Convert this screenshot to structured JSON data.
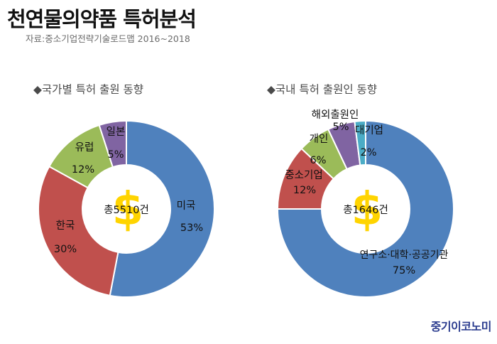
{
  "header": {
    "title": "천연물의약품 특허분석",
    "source": "자료:중소기업전략기술로드맵 2016~2018"
  },
  "logo_text": "중기이코노미",
  "colors": {
    "blue": "#4f81bd",
    "red": "#c0504d",
    "green": "#9bbb59",
    "purple": "#8064a2",
    "teal": "#4bacc6",
    "dollar": "#ffd400"
  },
  "chart_data": [
    {
      "type": "pie",
      "title": "◆국가별 특허 출원 동향",
      "center_label": "총5510건",
      "center_icon": "dollar-sign-icon",
      "slices": [
        {
          "label": "미국",
          "value": 53,
          "value_label": "53%",
          "color": "#4f81bd"
        },
        {
          "label": "한국",
          "value": 30,
          "value_label": "30%",
          "color": "#c0504d"
        },
        {
          "label": "유럽",
          "value": 12,
          "value_label": "12%",
          "color": "#9bbb59"
        },
        {
          "label": "일본",
          "value": 5,
          "value_label": "5%",
          "color": "#8064a2"
        }
      ]
    },
    {
      "type": "pie",
      "title": "◆국내 특허 출원인 동향",
      "center_label": "총1646건",
      "center_icon": "dollar-sign-icon",
      "slices": [
        {
          "label": "연구소·대학·공공기관",
          "value": 75,
          "value_label": "75%",
          "color": "#4f81bd"
        },
        {
          "label": "중소기업",
          "value": 12,
          "value_label": "12%",
          "color": "#c0504d"
        },
        {
          "label": "개인",
          "value": 6,
          "value_label": "6%",
          "color": "#9bbb59"
        },
        {
          "label": "해외출원인",
          "value": 5,
          "value_label": "5%",
          "color": "#8064a2"
        },
        {
          "label": "대기업",
          "value": 2,
          "value_label": "2%",
          "color": "#4bacc6"
        }
      ]
    }
  ]
}
